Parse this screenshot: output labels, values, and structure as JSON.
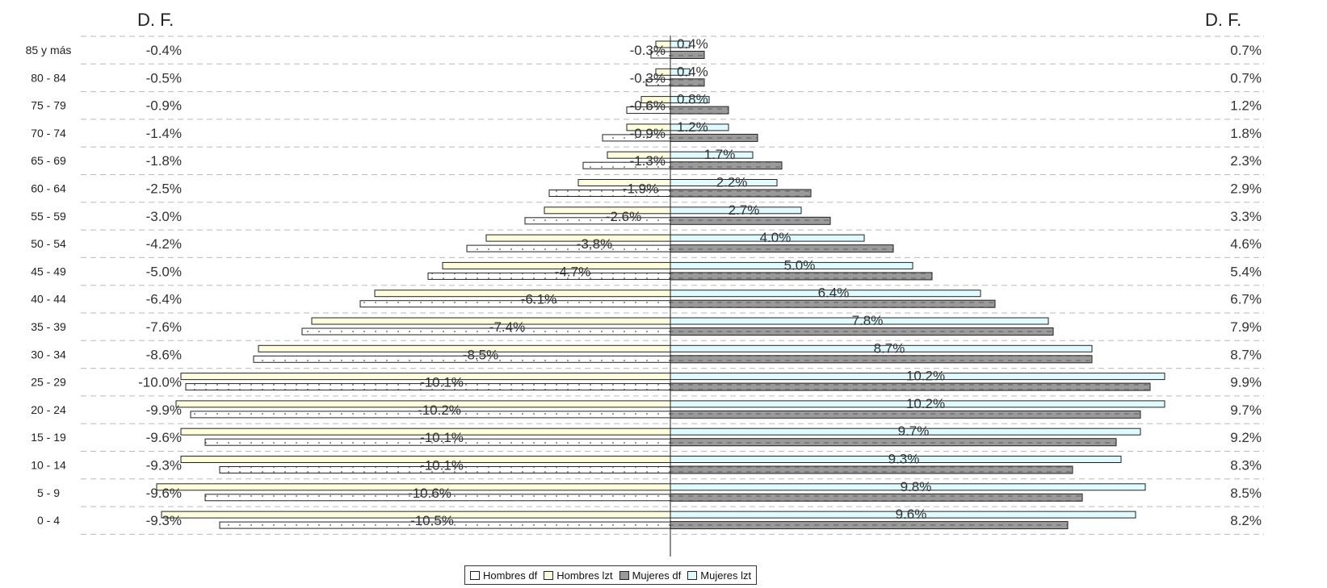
{
  "chart_data": {
    "type": "bar",
    "orientation": "horizontal",
    "title_left": "D. F.",
    "title_right": "D. F.",
    "categories": [
      "85 y más",
      "80 - 84",
      "75 - 79",
      "70 - 74",
      "65 - 69",
      "60 - 64",
      "55 - 59",
      "50 - 54",
      "45 - 49",
      "40 - 44",
      "35 - 39",
      "30 - 34",
      "25 - 29",
      "20 - 24",
      "15 - 19",
      "10 - 14",
      "5 - 9",
      "0 - 4"
    ],
    "series": [
      {
        "name": "Hombres df",
        "color": "#ffffff",
        "values": [
          -0.4,
          -0.5,
          -0.9,
          -1.4,
          -1.8,
          -2.5,
          -3.0,
          -4.2,
          -5.0,
          -6.4,
          -7.6,
          -8.6,
          -10.0,
          -9.9,
          -9.6,
          -9.3,
          -9.6,
          -9.3
        ]
      },
      {
        "name": "Hombres lzt",
        "color": "#ffffdd",
        "values": [
          -0.3,
          -0.3,
          -0.6,
          -0.9,
          -1.3,
          -1.9,
          -2.6,
          -3.8,
          -4.7,
          -6.1,
          -7.4,
          -8.5,
          -10.1,
          -10.2,
          -10.1,
          -10.1,
          -10.6,
          -10.5
        ]
      },
      {
        "name": "Mujeres df",
        "color": "#999999",
        "values": [
          0.7,
          0.7,
          1.2,
          1.8,
          2.3,
          2.9,
          3.3,
          4.6,
          5.4,
          6.7,
          7.9,
          8.7,
          9.9,
          9.7,
          9.2,
          8.3,
          8.5,
          8.2
        ]
      },
      {
        "name": "Mujeres lzt",
        "color": "#dffbff",
        "values": [
          0.4,
          0.4,
          0.8,
          1.2,
          1.7,
          2.2,
          2.7,
          4.0,
          5.0,
          6.4,
          7.8,
          8.7,
          10.2,
          10.2,
          9.7,
          9.3,
          9.8,
          9.6
        ]
      }
    ],
    "left_labels": [
      "-0.4%",
      "-0.5%",
      "-0.9%",
      "-1.4%",
      "-1.8%",
      "-2.5%",
      "-3.0%",
      "-4.2%",
      "-5.0%",
      "-6.4%",
      "-7.6%",
      "-8.6%",
      "-10.0%",
      "-9.9%",
      "-9.6%",
      "-9.3%",
      "-9.6%",
      "-9.3%"
    ],
    "inner_left_labels": [
      "-0.3%",
      "-0.3%",
      "-0.6%",
      "-0.9%",
      "-1.3%",
      "-1.9%",
      "-2.6%",
      "-3.8%",
      "-4.7%",
      "-6.1%",
      "-7.4%",
      "-8.5%",
      "-10.1%",
      "-10.2%",
      "-10.1%",
      "-10.1%",
      "-10.6%",
      "-10.5%"
    ],
    "inner_right_labels": [
      "0.4%",
      "0.4%",
      "0.8%",
      "1.2%",
      "1.7%",
      "2.2%",
      "2.7%",
      "4.0%",
      "5.0%",
      "6.4%",
      "7.8%",
      "8.7%",
      "10.2%",
      "10.2%",
      "9.7%",
      "9.3%",
      "9.8%",
      "9.6%"
    ],
    "right_labels": [
      "0.7%",
      "0.7%",
      "1.2%",
      "1.8%",
      "2.3%",
      "2.9%",
      "3.3%",
      "4.6%",
      "5.4%",
      "6.7%",
      "7.9%",
      "8.7%",
      "9.9%",
      "9.7%",
      "9.2%",
      "8.3%",
      "8.5%",
      "8.2%"
    ],
    "grid": true,
    "legend_position": "bottom-center"
  }
}
